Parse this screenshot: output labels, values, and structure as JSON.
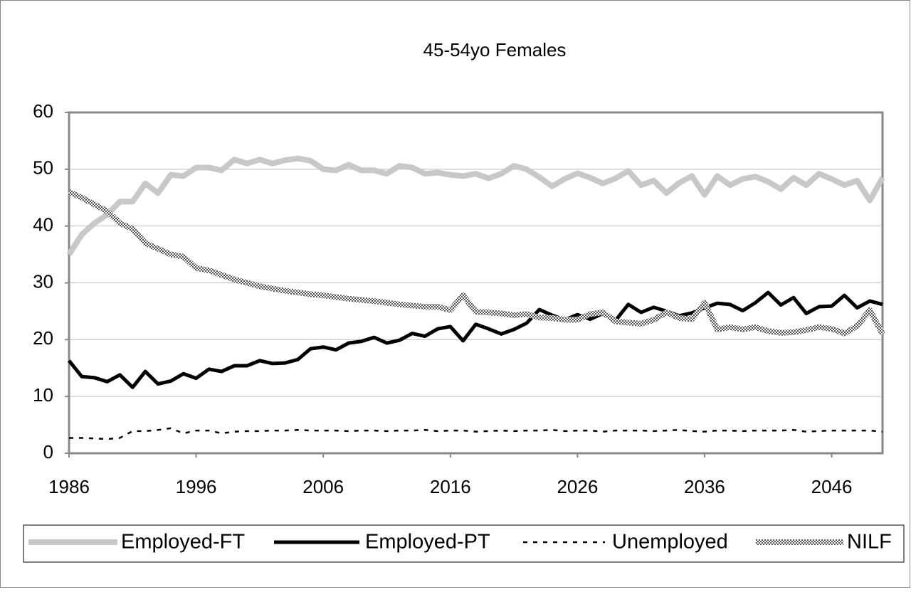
{
  "chart_data": {
    "type": "line",
    "title": "45-54yo Females",
    "x": [
      1986,
      1987,
      1988,
      1989,
      1990,
      1991,
      1992,
      1993,
      1994,
      1995,
      1996,
      1997,
      1998,
      1999,
      2000,
      2001,
      2002,
      2003,
      2004,
      2005,
      2006,
      2007,
      2008,
      2009,
      2010,
      2011,
      2012,
      2013,
      2014,
      2015,
      2016,
      2017,
      2018,
      2019,
      2020,
      2021,
      2022,
      2023,
      2024,
      2025,
      2026,
      2027,
      2028,
      2029,
      2030,
      2031,
      2032,
      2033,
      2034,
      2035,
      2036,
      2037,
      2038,
      2039,
      2040,
      2041,
      2042,
      2043,
      2044,
      2045,
      2046,
      2047,
      2048,
      2049,
      2050
    ],
    "xlim": [
      1986,
      2050
    ],
    "xticks": [
      1986,
      1996,
      2006,
      2016,
      2026,
      2036,
      2046
    ],
    "ylim": [
      0,
      60
    ],
    "yticks": [
      0,
      10,
      20,
      30,
      40,
      50,
      60
    ],
    "grid": true,
    "series": [
      {
        "name": "Employed-FT",
        "color": "#c8c8c8",
        "line_style": "solid",
        "line_width": 8,
        "values": [
          35,
          38.5,
          40.5,
          42,
          44.3,
          44.3,
          47.5,
          45.8,
          49,
          48.8,
          50.3,
          50.3,
          49.8,
          51.7,
          51,
          51.7,
          51,
          51.6,
          51.9,
          51.5,
          50,
          49.8,
          50.8,
          49.8,
          49.8,
          49.2,
          50.6,
          50.3,
          49.2,
          49.4,
          49,
          48.8,
          49.2,
          48.4,
          49.2,
          50.6,
          50,
          48.6,
          47,
          48.3,
          49.3,
          48.5,
          47.5,
          48.4,
          49.7,
          47.2,
          48,
          45.8,
          47.6,
          48.8,
          45.5,
          48.8,
          47.2,
          48.3,
          48.7,
          47.8,
          46.5,
          48.5,
          47.2,
          49.2,
          48.3,
          47.2,
          48,
          44.5,
          48.5
        ]
      },
      {
        "name": "Employed-PT",
        "color": "#000000",
        "line_style": "solid",
        "line_width": 5,
        "values": [
          16.3,
          13.5,
          13.3,
          12.6,
          13.8,
          11.6,
          14.4,
          12.2,
          12.7,
          14,
          13.2,
          14.8,
          14.4,
          15.4,
          15.4,
          16.3,
          15.8,
          15.9,
          16.5,
          18.4,
          18.7,
          18.2,
          19.4,
          19.7,
          20.4,
          19.4,
          19.9,
          21.1,
          20.6,
          21.9,
          22.3,
          19.8,
          22.7,
          21.9,
          21,
          21.8,
          22.9,
          25.3,
          24.3,
          23.5,
          24.4,
          23.6,
          24.6,
          23.4,
          26.2,
          24.8,
          25.7,
          25,
          24.2,
          24.7,
          25.6,
          26.4,
          26.2,
          25.1,
          26.5,
          28.3,
          26.1,
          27.4,
          24.6,
          25.8,
          25.9,
          27.8,
          25.6,
          26.8,
          26.2
        ]
      },
      {
        "name": "Unemployed",
        "color": "#000000",
        "line_style": "dashed",
        "line_width": 2.5,
        "values": [
          2.7,
          2.7,
          2.6,
          2.5,
          2.7,
          3.9,
          3.9,
          4.1,
          4.4,
          3.5,
          4,
          4,
          3.5,
          3.8,
          3.9,
          3.9,
          4,
          4,
          4.1,
          4,
          4,
          4,
          3.9,
          4,
          4,
          3.9,
          4,
          4,
          4.1,
          3.9,
          4,
          4,
          3.8,
          3.9,
          4,
          3.9,
          4,
          4,
          4.1,
          3.9,
          4,
          4,
          3.8,
          4,
          4,
          4,
          3.9,
          4,
          4.1,
          3.9,
          3.8,
          4,
          4,
          3.9,
          4,
          4,
          4,
          4.1,
          3.8,
          3.9,
          4,
          4,
          4,
          4,
          3.8
        ]
      },
      {
        "name": "NILF",
        "color": "#555555",
        "line_style": "checkered",
        "line_width": 8,
        "values": [
          46,
          45,
          43.8,
          42.6,
          40.5,
          39.5,
          37,
          36,
          35,
          34.6,
          32.6,
          32.2,
          31.4,
          30.6,
          30,
          29.4,
          29,
          28.6,
          28.3,
          28,
          27.8,
          27.5,
          27.2,
          27,
          26.8,
          26.5,
          26.2,
          26,
          25.8,
          25.8,
          25.2,
          27.8,
          24.9,
          24.8,
          24.6,
          24.3,
          24.5,
          23.9,
          23.8,
          23.5,
          23.5,
          24.5,
          24.8,
          23.2,
          23,
          22.8,
          23.5,
          24.8,
          23.8,
          23.6,
          26.5,
          21.8,
          22.2,
          21.8,
          22.2,
          21.5,
          21.2,
          21.3,
          21.7,
          22.2,
          21.9,
          21.1,
          22.4,
          25.2,
          21
        ]
      }
    ]
  }
}
